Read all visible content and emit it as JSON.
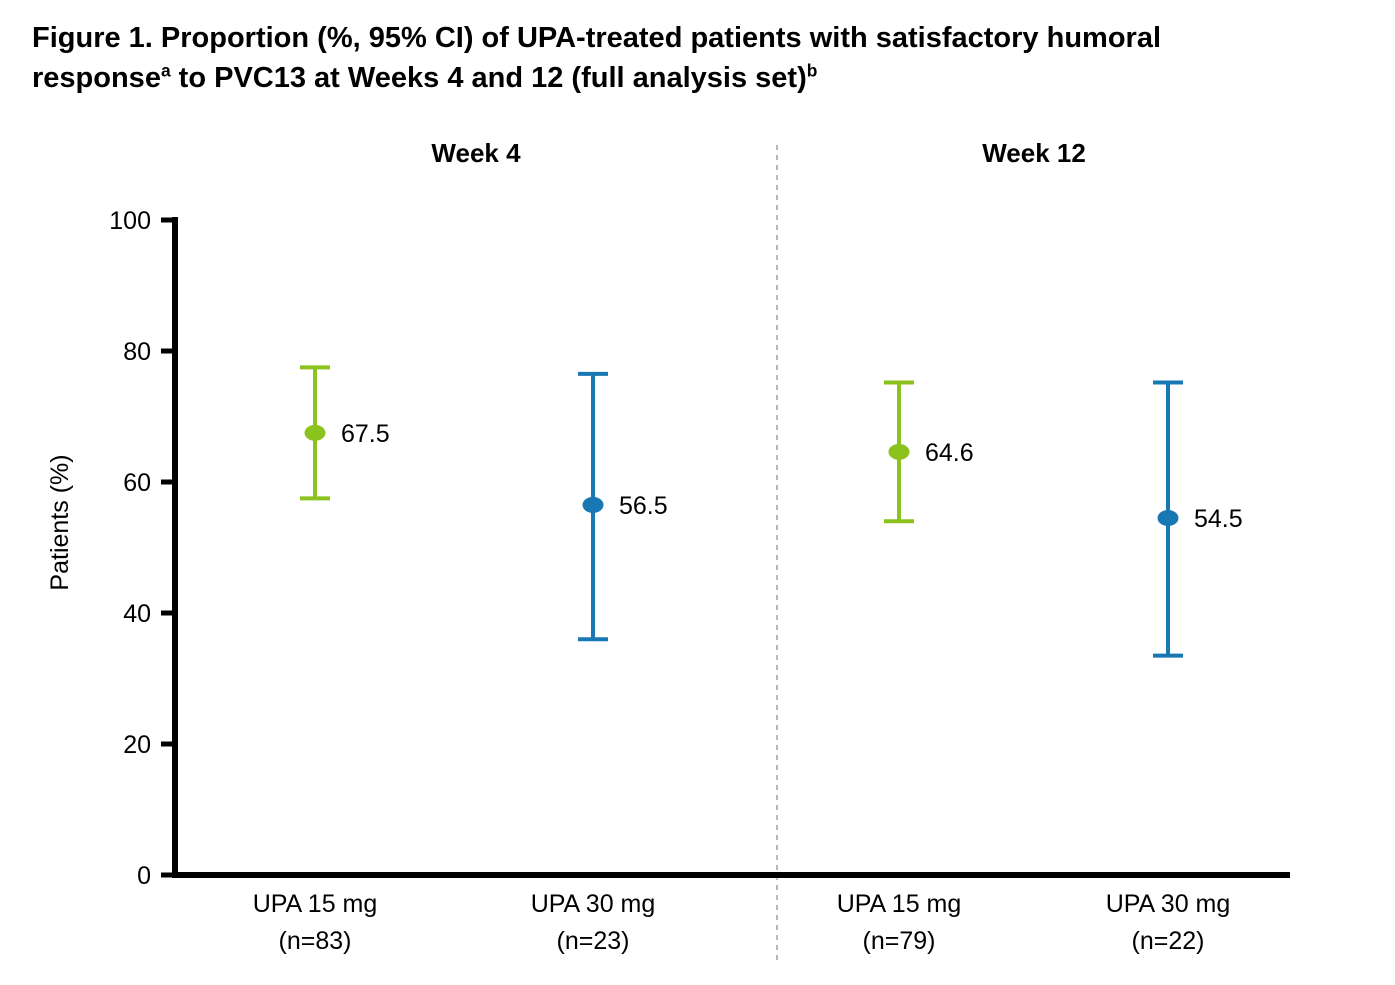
{
  "title": {
    "line1": "Figure 1. Proportion (%, 95% CI) of UPA-treated patients with satisfactory humoral",
    "line2_part1": "response",
    "line2_sup1": "a",
    "line2_part2": " to PVC13 at Weeks 4 and 12 (full analysis set)",
    "line2_sup2": "b"
  },
  "colors": {
    "upa15": "#8CC21E",
    "upa30": "#1878B4",
    "axis": "#000000",
    "divider": "#A0A0A0",
    "text": "#000000"
  },
  "chart_data": {
    "type": "scatter",
    "subtype": "point-estimates-with-95CI-error-bars",
    "ylabel": "Patients (%)",
    "ylim": [
      0,
      100
    ],
    "yticks": [
      0,
      20,
      40,
      60,
      80,
      100
    ],
    "grid": false,
    "legend": "none",
    "panels": [
      {
        "header": "Week 4",
        "points": [
          {
            "series": "UPA 15 mg",
            "category_line1": "UPA 15 mg",
            "category_line2": "(n=83)",
            "n": 83,
            "value": 67.5,
            "value_label": "67.5",
            "ci_lower": 57.5,
            "ci_upper": 77.5,
            "color": "#8CC21E"
          },
          {
            "series": "UPA 30 mg",
            "category_line1": "UPA 30 mg",
            "category_line2": "(n=23)",
            "n": 23,
            "value": 56.5,
            "value_label": "56.5",
            "ci_lower": 36.0,
            "ci_upper": 76.5,
            "color": "#1878B4"
          }
        ]
      },
      {
        "header": "Week 12",
        "points": [
          {
            "series": "UPA 15 mg",
            "category_line1": "UPA 15 mg",
            "category_line2": "(n=79)",
            "n": 79,
            "value": 64.6,
            "value_label": "64.6",
            "ci_lower": 54.0,
            "ci_upper": 75.2,
            "color": "#8CC21E"
          },
          {
            "series": "UPA 30 mg",
            "category_line1": "UPA 30 mg",
            "category_line2": "(n=22)",
            "n": 22,
            "value": 54.5,
            "value_label": "54.5",
            "ci_lower": 33.5,
            "ci_upper": 75.2,
            "color": "#1878B4"
          }
        ]
      }
    ]
  }
}
